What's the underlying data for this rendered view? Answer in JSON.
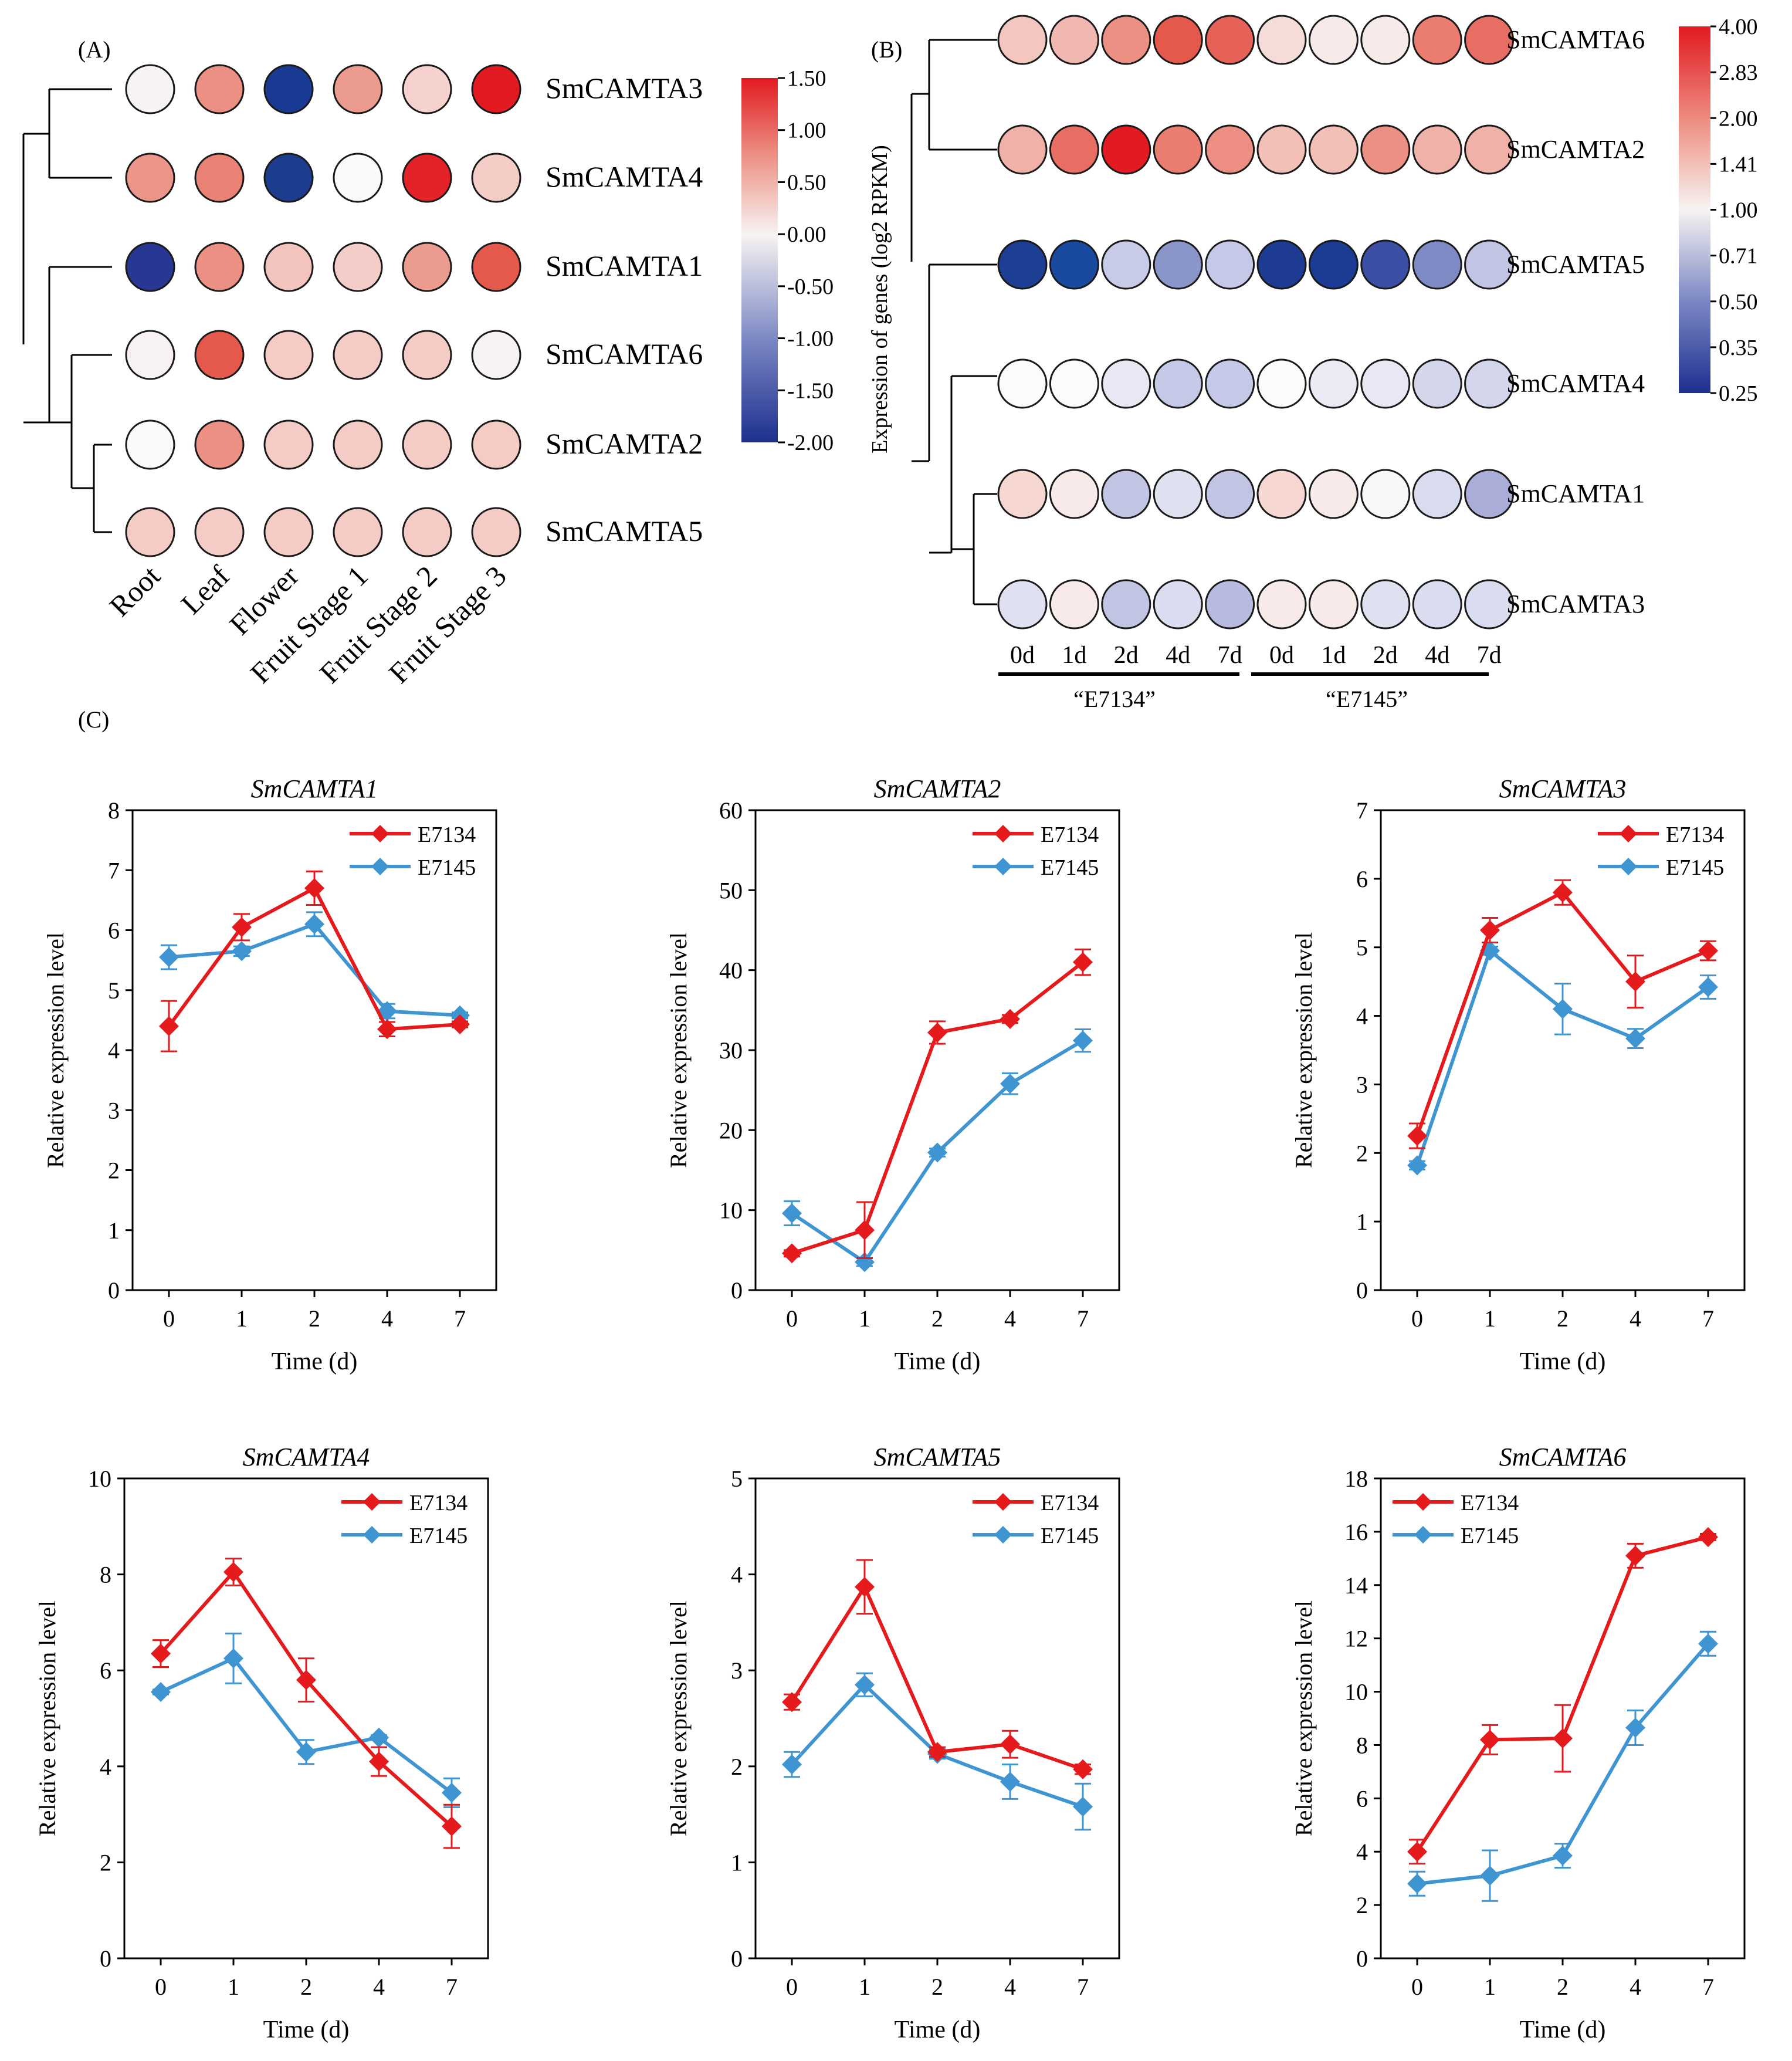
{
  "panel_a": {
    "label": "(A)",
    "genes": [
      "SmCAMTA3",
      "SmCAMTA4",
      "SmCAMTA1",
      "SmCAMTA6",
      "SmCAMTA2",
      "SmCAMTA5"
    ],
    "tissues": [
      "Root",
      "Leaf",
      "Flower",
      "Fruit Stage 1",
      "Fruit Stage 2",
      "Fruit Stage 3"
    ],
    "colorbar_ticks": [
      "1.50",
      "1.00",
      "0.50",
      "0.00",
      "-0.50",
      "-1.00",
      "-1.50",
      "-2.00"
    ],
    "colors": [
      [
        "#f7f3f2",
        "#ec9083",
        "#183a92",
        "#ec9b8f",
        "#f5d2cd",
        "#e21a22"
      ],
      [
        "#ec968a",
        "#e98275",
        "#1c3c8e",
        "#fafafa",
        "#e42229",
        "#f5cdc7"
      ],
      [
        "#283794",
        "#ec9083",
        "#f3c4bd",
        "#f4cdc8",
        "#ec9b8f",
        "#e5594d"
      ],
      [
        "#f7f2f1",
        "#e5594d",
        "#f4cbc5",
        "#f4cbc5",
        "#f4cbc5",
        "#f7f3f2"
      ],
      [
        "#faf8f8",
        "#ec9083",
        "#f4cbc5",
        "#f4cbc5",
        "#f4cbc5",
        "#f4cbc5"
      ],
      [
        "#f4cbc5",
        "#f4cbc5",
        "#f4cbc5",
        "#f4cbc5",
        "#f4cbc5",
        "#f4cbc5"
      ]
    ]
  },
  "panel_b": {
    "label": "(B)",
    "ylabel": "Expression of genes (log2 RPKM)",
    "genes": [
      "SmCAMTA6",
      "SmCAMTA2",
      "SmCAMTA5",
      "SmCAMTA4",
      "SmCAMTA1",
      "SmCAMTA3"
    ],
    "days": [
      "0d",
      "1d",
      "2d",
      "4d",
      "7d",
      "0d",
      "1d",
      "2d",
      "4d",
      "7d"
    ],
    "groups": [
      "“E7134”",
      "“E7145”"
    ],
    "colorbar_ticks": [
      "4.00",
      "2.83",
      "2.00",
      "1.41",
      "1.00",
      "0.71",
      "0.50",
      "0.35",
      "0.25"
    ],
    "colors": [
      [
        "#f3c6bf",
        "#f0b8b0",
        "#ec9083",
        "#e5594d",
        "#e66258",
        "#f6dcd8",
        "#f7ebe9",
        "#f7ebe9",
        "#ea7c70",
        "#e86e63"
      ],
      [
        "#f0b2a8",
        "#e86e63",
        "#e21a22",
        "#ea7c70",
        "#ec8e82",
        "#f3c0b8",
        "#f3c0b8",
        "#ec9083",
        "#f0b2a8",
        "#f0b2a8"
      ],
      [
        "#1d3f93",
        "#1a4aa0",
        "#c7cbe8",
        "#8a96c9",
        "#c5c8e6",
        "#1d3b93",
        "#1c3c93",
        "#3b50a5",
        "#7d8ac4",
        "#c1c4e2"
      ],
      [
        "#fbfbfb",
        "#fbfbfb",
        "#e8e8f4",
        "#c5c8e6",
        "#c5c8e6",
        "#fbfbfb",
        "#ebebf5",
        "#e8e8f4",
        "#d4d6ec",
        "#d4d6ec"
      ],
      [
        "#f6d7d2",
        "#f8eae8",
        "#c1c4e2",
        "#e0e1f0",
        "#c1c4e2",
        "#f6d7d2",
        "#f8eae8",
        "#f8f8f8",
        "#d9dbef",
        "#a9add8"
      ],
      [
        "#e0e1f0",
        "#f8eae8",
        "#c1c4e2",
        "#dadcef",
        "#b7bbdf",
        "#f7eae8",
        "#f8eae8",
        "#e0e1f0",
        "#dadcef",
        "#dadcef"
      ]
    ]
  },
  "panel_c": {
    "label": "(C)"
  },
  "chart_data": [
    {
      "type": "line",
      "title": "SmCAMTA1",
      "categories": [
        "0",
        "1",
        "2",
        "4",
        "7"
      ],
      "xlabel": "Time (d)",
      "ylabel": "Relative expression level",
      "ylim": [
        0,
        8
      ],
      "yticks": [
        0,
        1,
        2,
        3,
        4,
        5,
        6,
        7,
        8
      ],
      "legend_position": "top-right",
      "series": [
        {
          "name": "E7134",
          "color": "#e41a1c",
          "values": [
            4.4,
            6.05,
            6.7,
            4.35,
            4.43
          ],
          "errors": [
            0.42,
            0.22,
            0.28,
            0.12,
            0.05
          ]
        },
        {
          "name": "E7145",
          "color": "#3f95d1",
          "values": [
            5.55,
            5.65,
            6.1,
            4.65,
            4.58
          ],
          "errors": [
            0.2,
            0.08,
            0.2,
            0.12,
            0.05
          ]
        }
      ]
    },
    {
      "type": "line",
      "title": "SmCAMTA2",
      "categories": [
        "0",
        "1",
        "2",
        "4",
        "7"
      ],
      "xlabel": "Time (d)",
      "ylabel": "Relative expression level",
      "ylim": [
        0,
        60
      ],
      "yticks": [
        0,
        10,
        20,
        30,
        40,
        50,
        60
      ],
      "legend_position": "top-right",
      "series": [
        {
          "name": "E7134",
          "color": "#e41a1c",
          "values": [
            4.6,
            7.5,
            32.2,
            33.9,
            41.0
          ],
          "errors": [
            0.4,
            3.5,
            1.4,
            0.5,
            1.6
          ]
        },
        {
          "name": "E7145",
          "color": "#3f95d1",
          "values": [
            9.6,
            3.5,
            17.2,
            25.8,
            31.2
          ],
          "errors": [
            1.5,
            0.5,
            0.5,
            1.3,
            1.4
          ]
        }
      ]
    },
    {
      "type": "line",
      "title": "SmCAMTA3",
      "categories": [
        "0",
        "1",
        "2",
        "4",
        "7"
      ],
      "xlabel": "Time (d)",
      "ylabel": "Relative expression level",
      "ylim": [
        0,
        7
      ],
      "yticks": [
        0,
        1,
        2,
        3,
        4,
        5,
        6,
        7
      ],
      "legend_position": "top-right",
      "series": [
        {
          "name": "E7134",
          "color": "#e41a1c",
          "values": [
            2.25,
            5.25,
            5.8,
            4.5,
            4.95
          ],
          "errors": [
            0.18,
            0.18,
            0.18,
            0.38,
            0.14
          ]
        },
        {
          "name": "E7145",
          "color": "#3f95d1",
          "values": [
            1.82,
            4.95,
            4.1,
            3.67,
            4.42
          ],
          "errors": [
            0.06,
            0.06,
            0.37,
            0.14,
            0.17
          ]
        }
      ]
    },
    {
      "type": "line",
      "title": "SmCAMTA4",
      "categories": [
        "0",
        "1",
        "2",
        "4",
        "7"
      ],
      "xlabel": "Time (d)",
      "ylabel": "Relative expression level",
      "ylim": [
        0,
        10
      ],
      "yticks": [
        0,
        2,
        4,
        6,
        8,
        10
      ],
      "legend_position": "top-right",
      "series": [
        {
          "name": "E7134",
          "color": "#e41a1c",
          "values": [
            6.35,
            8.05,
            5.8,
            4.1,
            2.75
          ],
          "errors": [
            0.28,
            0.28,
            0.45,
            0.3,
            0.45
          ]
        },
        {
          "name": "E7145",
          "color": "#3f95d1",
          "values": [
            5.55,
            6.25,
            4.3,
            4.6,
            3.45
          ],
          "errors": [
            0.05,
            0.52,
            0.25,
            0.05,
            0.3
          ]
        }
      ]
    },
    {
      "type": "line",
      "title": "SmCAMTA5",
      "categories": [
        "0",
        "1",
        "2",
        "4",
        "7"
      ],
      "xlabel": "Time (d)",
      "ylabel": "Relative expression level",
      "ylim": [
        0,
        5
      ],
      "yticks": [
        0,
        1,
        2,
        3,
        4,
        5
      ],
      "legend_position": "top-right",
      "series": [
        {
          "name": "E7134",
          "color": "#e41a1c",
          "values": [
            2.67,
            3.87,
            2.15,
            2.23,
            1.97
          ],
          "errors": [
            0.08,
            0.28,
            0.05,
            0.14,
            0.05
          ]
        },
        {
          "name": "E7145",
          "color": "#3f95d1",
          "values": [
            2.02,
            2.85,
            2.13,
            1.84,
            1.58
          ],
          "errors": [
            0.13,
            0.12,
            0.05,
            0.18,
            0.24
          ]
        }
      ]
    },
    {
      "type": "line",
      "title": "SmCAMTA6",
      "categories": [
        "0",
        "1",
        "2",
        "4",
        "7"
      ],
      "xlabel": "Time (d)",
      "ylabel": "Relative expression level",
      "ylim": [
        0,
        18
      ],
      "yticks": [
        0,
        2,
        4,
        6,
        8,
        10,
        12,
        14,
        16,
        18
      ],
      "legend_position": "top-left",
      "series": [
        {
          "name": "E7134",
          "color": "#e41a1c",
          "values": [
            4.0,
            8.2,
            8.25,
            15.1,
            15.8
          ],
          "errors": [
            0.45,
            0.55,
            1.25,
            0.45,
            0.12
          ]
        },
        {
          "name": "E7145",
          "color": "#3f95d1",
          "values": [
            2.8,
            3.1,
            3.85,
            8.65,
            11.8
          ],
          "errors": [
            0.45,
            0.95,
            0.45,
            0.65,
            0.45
          ]
        }
      ]
    }
  ]
}
